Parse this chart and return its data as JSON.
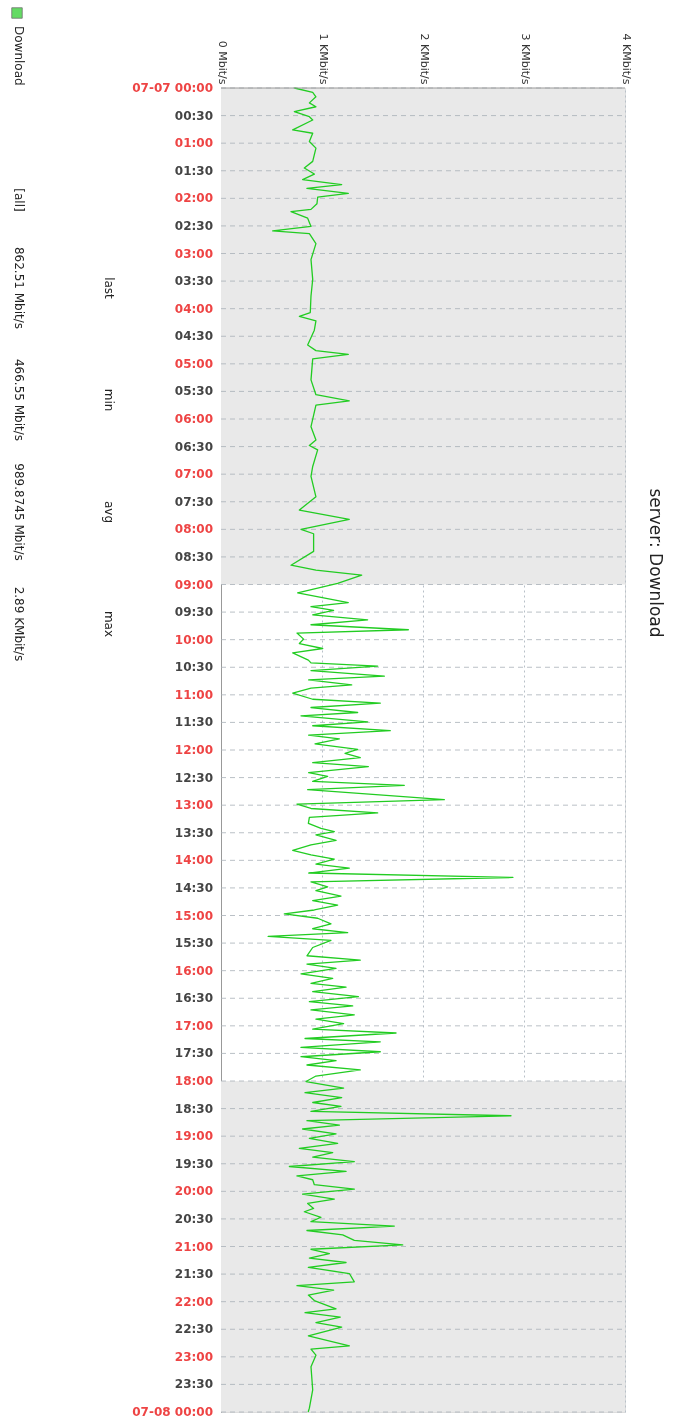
{
  "chart_data": {
    "type": "line",
    "title": "server: Download",
    "orientation": "horizontal",
    "x": [
      0.0,
      0.08,
      0.16,
      0.27,
      0.34,
      0.43,
      0.52,
      0.58,
      0.76,
      0.82,
      0.97,
      1.09,
      1.33,
      1.45,
      1.56,
      1.66,
      1.75,
      1.82,
      1.91,
      1.98,
      2.1,
      2.2,
      2.24,
      2.36,
      2.51,
      2.59,
      2.64,
      2.82,
      3.11,
      3.47,
      3.77,
      4.07,
      4.14,
      4.22,
      4.39,
      4.66,
      4.76,
      4.83,
      4.91,
      5.29,
      5.56,
      5.67,
      5.75,
      6.14,
      6.38,
      6.48,
      6.56,
      6.86,
      7.04,
      7.41,
      7.65,
      7.82,
      8.0,
      8.08,
      8.4,
      8.65,
      8.74,
      8.83,
      8.98,
      9.15,
      9.33,
      9.4,
      9.47,
      9.55,
      9.64,
      9.73,
      9.82,
      9.88,
      9.99,
      10.07,
      10.16,
      10.24,
      10.37,
      10.42,
      10.48,
      10.56,
      10.66,
      10.73,
      10.82,
      10.88,
      10.97,
      11.08,
      11.15,
      11.23,
      11.32,
      11.38,
      11.49,
      11.56,
      11.65,
      11.73,
      11.8,
      11.89,
      11.99,
      12.06,
      12.14,
      12.23,
      12.3,
      12.41,
      12.48,
      12.57,
      12.64,
      12.72,
      12.9,
      12.98,
      13.06,
      13.14,
      13.22,
      13.33,
      13.42,
      13.48,
      13.54,
      13.64,
      13.72,
      13.82,
      13.9,
      13.98,
      14.07,
      14.14,
      14.23,
      14.31,
      14.39,
      14.48,
      14.55,
      14.65,
      14.73,
      14.81,
      14.9,
      14.97,
      15.05,
      15.15,
      15.24,
      15.31,
      15.38,
      15.45,
      15.58,
      15.73,
      15.81,
      15.88,
      15.96,
      16.06,
      16.14,
      16.23,
      16.3,
      16.38,
      16.47,
      16.56,
      16.64,
      16.71,
      16.8,
      16.88,
      16.96,
      17.06,
      17.13,
      17.23,
      17.29,
      17.39,
      17.47,
      17.56,
      17.63,
      17.71,
      17.8,
      17.91,
      18.01,
      18.13,
      18.21,
      18.3,
      18.39,
      18.46,
      18.55,
      18.63,
      18.72,
      18.8,
      18.87,
      18.96,
      19.04,
      19.13,
      19.22,
      19.3,
      19.38,
      19.46,
      19.55,
      19.64,
      19.72,
      19.79,
      19.88,
      19.96,
      20.05,
      20.14,
      20.22,
      20.31,
      20.37,
      20.47,
      20.55,
      20.63,
      20.71,
      20.79,
      20.89,
      20.97,
      21.05,
      21.13,
      21.21,
      21.29,
      21.38,
      21.49,
      21.64,
      21.71,
      21.79,
      21.88,
      21.98,
      22.13,
      22.2,
      22.28,
      22.38,
      22.46,
      22.62,
      22.8,
      22.86,
      22.97,
      23.18,
      23.6,
      23.93,
      24.0
    ],
    "series": [
      {
        "name": "Download",
        "color": "#22cc22",
        "values": [
          0.726,
          0.908,
          0.94,
          0.875,
          0.94,
          0.726,
          0.875,
          0.908,
          0.71,
          0.908,
          0.875,
          0.94,
          0.908,
          0.825,
          0.924,
          0.808,
          1.195,
          0.851,
          1.26,
          0.957,
          0.95,
          0.891,
          0.693,
          0.858,
          0.891,
          0.512,
          0.875,
          0.94,
          0.891,
          0.908,
          0.891,
          0.884,
          0.776,
          0.94,
          0.924,
          0.858,
          0.94,
          1.26,
          0.908,
          0.891,
          0.94,
          1.27,
          0.94,
          0.891,
          0.94,
          0.875,
          0.957,
          0.908,
          0.891,
          0.94,
          0.776,
          1.27,
          0.792,
          0.917,
          0.917,
          0.693,
          0.94,
          1.393,
          1.155,
          0.759,
          1.26,
          0.891,
          1.115,
          0.908,
          1.452,
          0.891,
          1.855,
          0.752,
          0.818,
          0.776,
          1.007,
          0.71,
          0.865,
          0.891,
          1.551,
          0.891,
          1.617,
          0.868,
          1.294,
          0.891,
          0.71,
          0.908,
          1.577,
          0.891,
          1.353,
          0.792,
          1.452,
          0.908,
          1.676,
          0.868,
          1.172,
          0.931,
          1.353,
          1.228,
          1.379,
          0.908,
          1.459,
          0.868,
          1.056,
          0.908,
          1.815,
          0.858,
          2.211,
          0.752,
          0.891,
          1.551,
          0.875,
          0.865,
          0.99,
          1.122,
          0.94,
          1.139,
          0.891,
          0.71,
          0.891,
          1.122,
          0.94,
          1.27,
          0.868,
          2.89,
          0.891,
          1.056,
          0.94,
          1.188,
          0.908,
          1.155,
          0.924,
          0.627,
          0.957,
          1.089,
          0.908,
          1.254,
          0.467,
          1.089,
          0.908,
          0.851,
          1.379,
          0.851,
          1.139,
          0.792,
          1.106,
          0.891,
          1.238,
          0.908,
          1.36,
          0.875,
          1.304,
          0.891,
          1.32,
          0.94,
          1.214,
          0.908,
          1.733,
          0.832,
          1.577,
          0.792,
          1.577,
          0.792,
          1.139,
          0.851,
          1.379,
          0.94,
          0.842,
          1.214,
          0.832,
          1.195,
          0.908,
          1.188,
          0.891,
          2.871,
          0.851,
          1.172,
          0.808,
          1.139,
          0.875,
          1.155,
          0.776,
          1.106,
          0.908,
          1.32,
          0.677,
          1.238,
          0.752,
          0.908,
          0.924,
          1.32,
          0.808,
          1.122,
          0.858,
          0.917,
          0.825,
          0.99,
          0.891,
          1.716,
          0.851,
          1.205,
          1.32,
          1.799,
          0.891,
          1.073,
          0.875,
          1.238,
          0.865,
          1.271,
          1.32,
          0.752,
          1.115,
          0.865,
          0.924,
          1.139,
          0.832,
          1.181,
          0.94,
          1.195,
          0.865,
          1.271,
          0.891,
          0.94,
          0.891,
          0.908,
          0.875,
          0.863
        ]
      }
    ],
    "xlim": [
      0,
      4
    ],
    "xticks": [
      {
        "value": 0,
        "label": "0 Mbit/s"
      },
      {
        "value": 1,
        "label": "1 KMbit/s"
      },
      {
        "value": 2,
        "label": "2 KMbit/s"
      },
      {
        "value": 3,
        "label": "3 KMbit/s"
      },
      {
        "value": 4,
        "label": "4 KMbit/s"
      }
    ],
    "ylim": [
      24,
      0
    ],
    "yticks": [
      {
        "value": 0,
        "label": "07-07 00:00"
      },
      {
        "value": 0.5,
        "label": "00:30"
      },
      {
        "value": 1,
        "label": "01:00"
      },
      {
        "value": 1.5,
        "label": "01:30"
      },
      {
        "value": 2,
        "label": "02:00"
      },
      {
        "value": 2.5,
        "label": "02:30"
      },
      {
        "value": 3,
        "label": "03:00"
      },
      {
        "value": 3.5,
        "label": "03:30"
      },
      {
        "value": 4,
        "label": "04:00"
      },
      {
        "value": 4.5,
        "label": "04:30"
      },
      {
        "value": 5,
        "label": "05:00"
      },
      {
        "value": 5.5,
        "label": "05:30"
      },
      {
        "value": 6,
        "label": "06:00"
      },
      {
        "value": 6.5,
        "label": "06:30"
      },
      {
        "value": 7,
        "label": "07:00"
      },
      {
        "value": 7.5,
        "label": "07:30"
      },
      {
        "value": 8,
        "label": "08:00"
      },
      {
        "value": 8.5,
        "label": "08:30"
      },
      {
        "value": 9,
        "label": "09:00"
      },
      {
        "value": 9.5,
        "label": "09:30"
      },
      {
        "value": 10,
        "label": "10:00"
      },
      {
        "value": 10.5,
        "label": "10:30"
      },
      {
        "value": 11,
        "label": "11:00"
      },
      {
        "value": 11.5,
        "label": "11:30"
      },
      {
        "value": 12,
        "label": "12:00"
      },
      {
        "value": 12.5,
        "label": "12:30"
      },
      {
        "value": 13,
        "label": "13:00"
      },
      {
        "value": 13.5,
        "label": "13:30"
      },
      {
        "value": 14,
        "label": "14:00"
      },
      {
        "value": 14.5,
        "label": "14:30"
      },
      {
        "value": 15,
        "label": "15:00"
      },
      {
        "value": 15.5,
        "label": "15:30"
      },
      {
        "value": 16,
        "label": "16:00"
      },
      {
        "value": 16.5,
        "label": "16:30"
      },
      {
        "value": 17,
        "label": "17:00"
      },
      {
        "value": 17.5,
        "label": "17:30"
      },
      {
        "value": 18,
        "label": "18:00"
      },
      {
        "value": 18.5,
        "label": "18:30"
      },
      {
        "value": 19,
        "label": "19:00"
      },
      {
        "value": 19.5,
        "label": "19:30"
      },
      {
        "value": 20,
        "label": "20:00"
      },
      {
        "value": 20.5,
        "label": "20:30"
      },
      {
        "value": 21,
        "label": "21:00"
      },
      {
        "value": 21.5,
        "label": "21:30"
      },
      {
        "value": 22,
        "label": "22:00"
      },
      {
        "value": 22.5,
        "label": "22:30"
      },
      {
        "value": 23,
        "label": "23:00"
      },
      {
        "value": 23.5,
        "label": "23:30"
      },
      {
        "value": 24,
        "label": "07-08 00:00"
      }
    ],
    "bands": [
      {
        "axis": "y",
        "from": 0,
        "to": 9,
        "color": "#e9e9e9"
      },
      {
        "axis": "y",
        "from": 18,
        "to": 24,
        "color": "#e9e9e9"
      }
    ],
    "grid": true,
    "legend": "left",
    "line_style": "solid",
    "marker": "none",
    "annotations": [
      "[all]",
      "last",
      "862.51 Mbit/s",
      "min",
      "466.55 Mbit/s",
      "avg",
      "989.8745 Mbit/s",
      "max",
      "2.89 KMbit/s"
    ]
  }
}
